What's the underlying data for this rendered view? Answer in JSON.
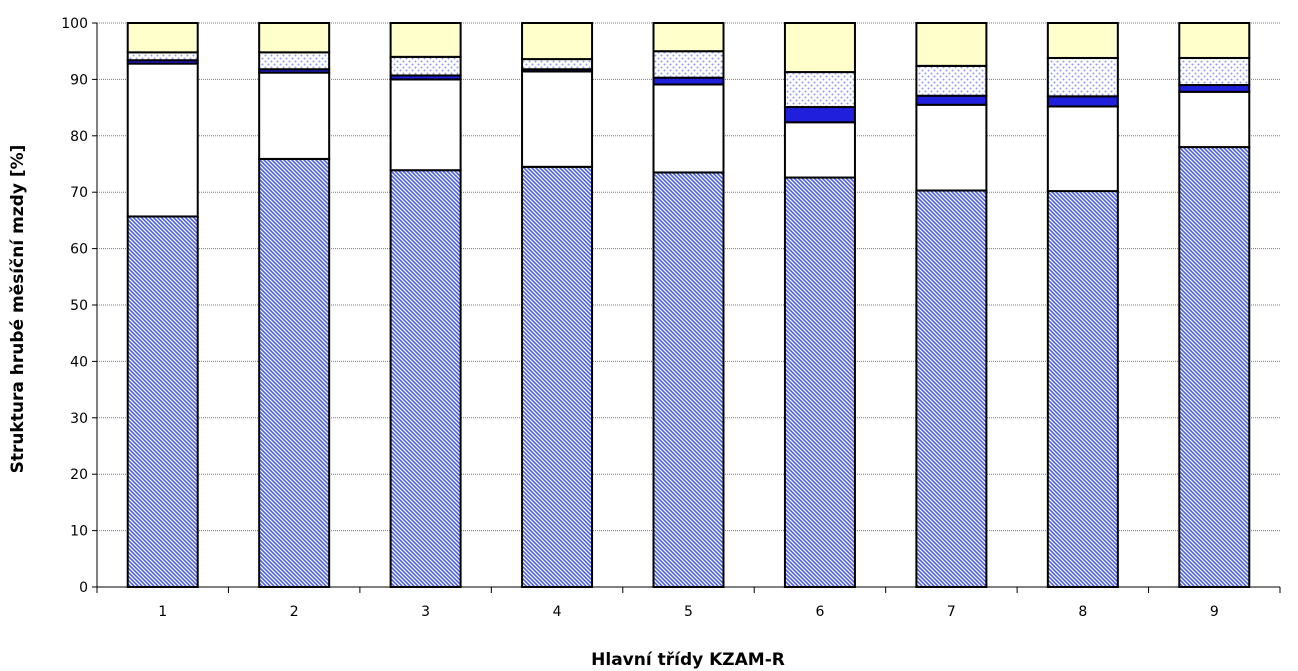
{
  "chart_data": {
    "type": "bar",
    "stacked": true,
    "title": "",
    "xlabel": "Hlavní třídy KZAM-R",
    "ylabel": "Struktura hrubé měsíční mzdy [%]",
    "ylim": [
      0,
      100
    ],
    "yticks": [
      "0",
      "10",
      "20",
      "30",
      "40",
      "50",
      "60",
      "70",
      "80",
      "90",
      "100"
    ],
    "grid": true,
    "legend": "none",
    "categories": [
      "1",
      "2",
      "3",
      "4",
      "5",
      "6",
      "7",
      "8",
      "9"
    ],
    "series": [
      {
        "values": [
          65.7,
          75.9,
          73.9,
          74.5,
          73.5,
          72.6,
          70.3,
          70.2,
          78.0
        ],
        "color": "#4a5ee0",
        "fill": "diagonal-hatch"
      },
      {
        "values": [
          27.1,
          15.3,
          16.1,
          16.9,
          15.6,
          9.8,
          15.2,
          15.0,
          9.8
        ],
        "color": "#ffffff",
        "fill": "solid"
      },
      {
        "values": [
          0.6,
          0.6,
          0.7,
          0.4,
          1.2,
          2.7,
          1.6,
          1.8,
          1.2
        ],
        "color": "#1f1fdc",
        "fill": "solid"
      },
      {
        "values": [
          1.4,
          3.0,
          3.3,
          1.8,
          4.7,
          6.2,
          5.3,
          6.8,
          4.8
        ],
        "color": "#8f99f0",
        "fill": "dots"
      },
      {
        "values": [
          5.2,
          5.2,
          6.0,
          6.4,
          5.0,
          8.7,
          7.6,
          6.2,
          6.2
        ],
        "color": "#ffffcc",
        "fill": "solid"
      }
    ]
  }
}
